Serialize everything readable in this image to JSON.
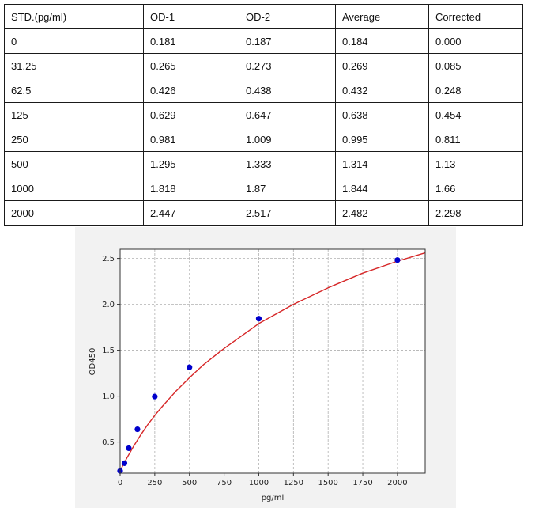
{
  "table": {
    "headers": [
      "STD.(pg/ml)",
      "OD-1",
      "OD-2",
      "Average",
      "Corrected"
    ],
    "rows": [
      [
        "0",
        "0.181",
        "0.187",
        "0.184",
        "0.000"
      ],
      [
        "31.25",
        "0.265",
        "0.273",
        "0.269",
        "0.085"
      ],
      [
        "62.5",
        "0.426",
        "0.438",
        "0.432",
        "0.248"
      ],
      [
        "125",
        "0.629",
        "0.647",
        "0.638",
        "0.454"
      ],
      [
        "250",
        "0.981",
        "1.009",
        "0.995",
        "0.811"
      ],
      [
        "500",
        "1.295",
        "1.333",
        "1.314",
        "1.13"
      ],
      [
        "1000",
        "1.818",
        "1.87",
        "1.844",
        "1.66"
      ],
      [
        "2000",
        "2.447",
        "2.517",
        "2.482",
        "2.298"
      ]
    ]
  },
  "chart_data": {
    "type": "scatter",
    "title": "",
    "xlabel": "pg/ml",
    "ylabel": "OD450",
    "xlim": [
      0,
      2200
    ],
    "ylim": [
      0.16,
      2.6
    ],
    "xticks": [
      0,
      250,
      500,
      750,
      1000,
      1250,
      1500,
      1750,
      2000
    ],
    "yticks": [
      0.5,
      1.0,
      1.5,
      2.0,
      2.5
    ],
    "ytick_labels": [
      "0.5",
      "1.0",
      "1.5",
      "2.0",
      "2.5"
    ],
    "grid": true,
    "series": [
      {
        "kind": "points",
        "color": "#0000cc",
        "x": [
          0,
          31.25,
          62.5,
          125,
          250,
          500,
          1000,
          2000
        ],
        "y": [
          0.184,
          0.269,
          0.432,
          0.638,
          0.995,
          1.314,
          1.844,
          2.482
        ]
      },
      {
        "kind": "fit-curve",
        "color": "#d62728",
        "x": [
          0,
          25,
          50,
          100,
          150,
          200,
          250,
          300,
          400,
          500,
          600,
          750,
          1000,
          1250,
          1500,
          1750,
          2000,
          2200
        ],
        "y": [
          0.185,
          0.26,
          0.33,
          0.46,
          0.58,
          0.69,
          0.79,
          0.88,
          1.05,
          1.2,
          1.34,
          1.52,
          1.79,
          2.0,
          2.18,
          2.34,
          2.47,
          2.56
        ]
      }
    ]
  }
}
